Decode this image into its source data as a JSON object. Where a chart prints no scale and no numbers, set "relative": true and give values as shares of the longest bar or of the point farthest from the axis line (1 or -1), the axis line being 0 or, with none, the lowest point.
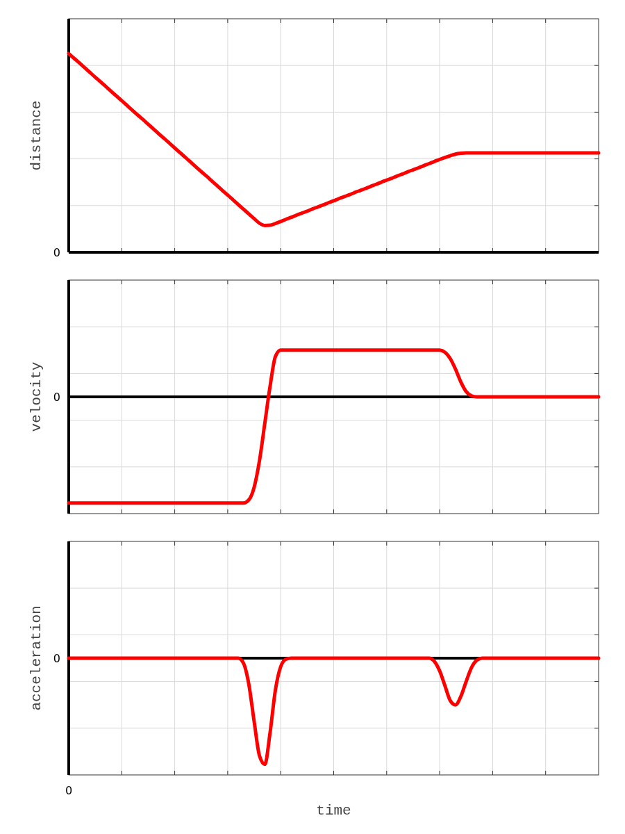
{
  "chart_data": [
    {
      "type": "line",
      "ylabel": "distance",
      "relative": true,
      "grid": true,
      "color": "#ff0000",
      "annotations": [
        "0"
      ],
      "categories": [
        null,
        null,
        null,
        null,
        null,
        null,
        null,
        null,
        null,
        null,
        null,
        null,
        null,
        null,
        null,
        null,
        null,
        null,
        null,
        null,
        null,
        null,
        null,
        null,
        null,
        null,
        null,
        null,
        null,
        null,
        null,
        null,
        null,
        null,
        null,
        null,
        null,
        null,
        null,
        null,
        null,
        null,
        null,
        null,
        null,
        null,
        null,
        null,
        null,
        null,
        null,
        null,
        null,
        null,
        null,
        null,
        null,
        null,
        null,
        null,
        null,
        null,
        null,
        null,
        null,
        null,
        null,
        null,
        null,
        null,
        null,
        null,
        null,
        null,
        null,
        null,
        null,
        null,
        null,
        null,
        null,
        null,
        null,
        null,
        null,
        null,
        null,
        null,
        null,
        null,
        null,
        null,
        null,
        null,
        null,
        null,
        null,
        null,
        null,
        null,
        null
      ],
      "values": [
        1,
        0.976,
        0.953,
        0.929,
        0.905,
        0.881,
        0.858,
        0.834,
        0.81,
        0.786,
        0.763,
        0.739,
        0.715,
        0.691,
        0.668,
        0.644,
        0.62,
        0.596,
        0.573,
        0.549,
        0.525,
        0.501,
        0.478,
        0.454,
        0.43,
        0.406,
        0.383,
        0.359,
        0.335,
        0.311,
        0.288,
        0.264,
        0.24,
        0.216,
        0.193,
        0.169,
        0.146,
        0.135,
        0.136,
        0.145,
        0.155,
        0.166,
        0.176,
        0.187,
        0.197,
        0.207,
        0.218,
        0.228,
        0.238,
        0.249,
        0.259,
        0.27,
        0.28,
        0.29,
        0.301,
        0.311,
        0.321,
        0.332,
        0.342,
        0.353,
        0.363,
        0.373,
        0.384,
        0.394,
        0.405,
        0.415,
        0.425,
        0.436,
        0.446,
        0.457,
        0.467,
        0.477,
        0.486,
        0.494,
        0.498,
        0.5,
        0.5,
        0.5,
        0.5,
        0.5,
        0.5,
        0.5,
        0.5,
        0.5,
        0.5,
        0.5,
        0.5,
        0.5,
        0.5,
        0.5,
        0.5,
        0.5,
        0.5,
        0.5,
        0.5,
        0.5,
        0.5,
        0.5,
        0.5,
        0.5,
        0.5
      ]
    },
    {
      "type": "line",
      "ylabel": "velocity",
      "relative": true,
      "grid": true,
      "color": "#ff0000",
      "annotations": [
        "0"
      ],
      "categories": [
        null,
        null,
        null,
        null,
        null,
        null,
        null,
        null,
        null,
        null,
        null,
        null,
        null,
        null,
        null,
        null,
        null,
        null,
        null,
        null,
        null,
        null,
        null,
        null,
        null,
        null,
        null,
        null,
        null,
        null,
        null,
        null,
        null,
        null,
        null,
        null,
        null,
        null,
        null,
        null,
        null,
        null,
        null,
        null,
        null,
        null,
        null,
        null,
        null,
        null,
        null,
        null,
        null,
        null,
        null,
        null,
        null,
        null,
        null,
        null,
        null,
        null,
        null,
        null,
        null,
        null,
        null,
        null,
        null,
        null,
        null,
        null,
        null,
        null,
        null,
        null,
        null,
        null,
        null,
        null,
        null,
        null,
        null,
        null,
        null,
        null,
        null,
        null,
        null,
        null,
        null,
        null,
        null,
        null,
        null,
        null,
        null,
        null,
        null,
        null,
        null
      ],
      "values": [
        -1,
        -1,
        -1,
        -1,
        -1,
        -1,
        -1,
        -1,
        -1,
        -1,
        -1,
        -1,
        -1,
        -1,
        -1,
        -1,
        -1,
        -1,
        -1,
        -1,
        -1,
        -1,
        -1,
        -1,
        -1,
        -1,
        -1,
        -1,
        -1,
        -1,
        -1,
        -1,
        -1,
        -1,
        -0.97,
        -0.85,
        -0.6,
        -0.25,
        0.1,
        0.38,
        0.44,
        0.44,
        0.44,
        0.44,
        0.44,
        0.44,
        0.44,
        0.44,
        0.44,
        0.44,
        0.44,
        0.44,
        0.44,
        0.44,
        0.44,
        0.44,
        0.44,
        0.44,
        0.44,
        0.44,
        0.44,
        0.44,
        0.44,
        0.44,
        0.44,
        0.44,
        0.44,
        0.44,
        0.44,
        0.44,
        0.44,
        0.42,
        0.36,
        0.26,
        0.14,
        0.05,
        0.01,
        0,
        0,
        0,
        0,
        0,
        0,
        0,
        0,
        0,
        0,
        0,
        0,
        0,
        0,
        0,
        0,
        0,
        0,
        0,
        0,
        0,
        0,
        0,
        0
      ]
    },
    {
      "type": "line",
      "ylabel": "acceleration",
      "xlabel": "time",
      "relative": true,
      "grid": true,
      "color": "#ff0000",
      "annotations": [
        "0",
        "0"
      ],
      "categories": [
        null,
        null,
        null,
        null,
        null,
        null,
        null,
        null,
        null,
        null,
        null,
        null,
        null,
        null,
        null,
        null,
        null,
        null,
        null,
        null,
        null,
        null,
        null,
        null,
        null,
        null,
        null,
        null,
        null,
        null,
        null,
        null,
        null,
        null,
        null,
        null,
        null,
        null,
        null,
        null,
        null,
        null,
        null,
        null,
        null,
        null,
        null,
        null,
        null,
        null,
        null,
        null,
        null,
        null,
        null,
        null,
        null,
        null,
        null,
        null,
        null,
        null,
        null,
        null,
        null,
        null,
        null,
        null,
        null,
        null,
        null,
        null,
        null,
        null,
        null,
        null,
        null,
        null,
        null,
        null,
        null,
        null,
        null,
        null,
        null,
        null,
        null,
        null,
        null,
        null,
        null,
        null,
        null,
        null,
        null,
        null,
        null,
        null,
        null,
        null,
        null
      ],
      "values": [
        0,
        0,
        0,
        0,
        0,
        0,
        0,
        0,
        0,
        0,
        0,
        0,
        0,
        0,
        0,
        0,
        0,
        0,
        0,
        0,
        0,
        0,
        0,
        0,
        0,
        0,
        0,
        0,
        0,
        0,
        0,
        0,
        0,
        -0.05,
        -0.25,
        -0.6,
        -0.92,
        -1,
        -0.7,
        -0.3,
        -0.08,
        -0.01,
        0,
        0,
        0,
        0,
        0,
        0,
        0,
        0,
        0,
        0,
        0,
        0,
        0,
        0,
        0,
        0,
        0,
        0,
        0,
        0,
        0,
        0,
        0,
        0,
        0,
        0,
        0,
        -0.03,
        -0.12,
        -0.26,
        -0.4,
        -0.44,
        -0.36,
        -0.22,
        -0.09,
        -0.02,
        0,
        0,
        0,
        0,
        0,
        0,
        0,
        0,
        0,
        0,
        0,
        0,
        0,
        0,
        0,
        0,
        0,
        0,
        0,
        0,
        0,
        0,
        0
      ]
    }
  ]
}
